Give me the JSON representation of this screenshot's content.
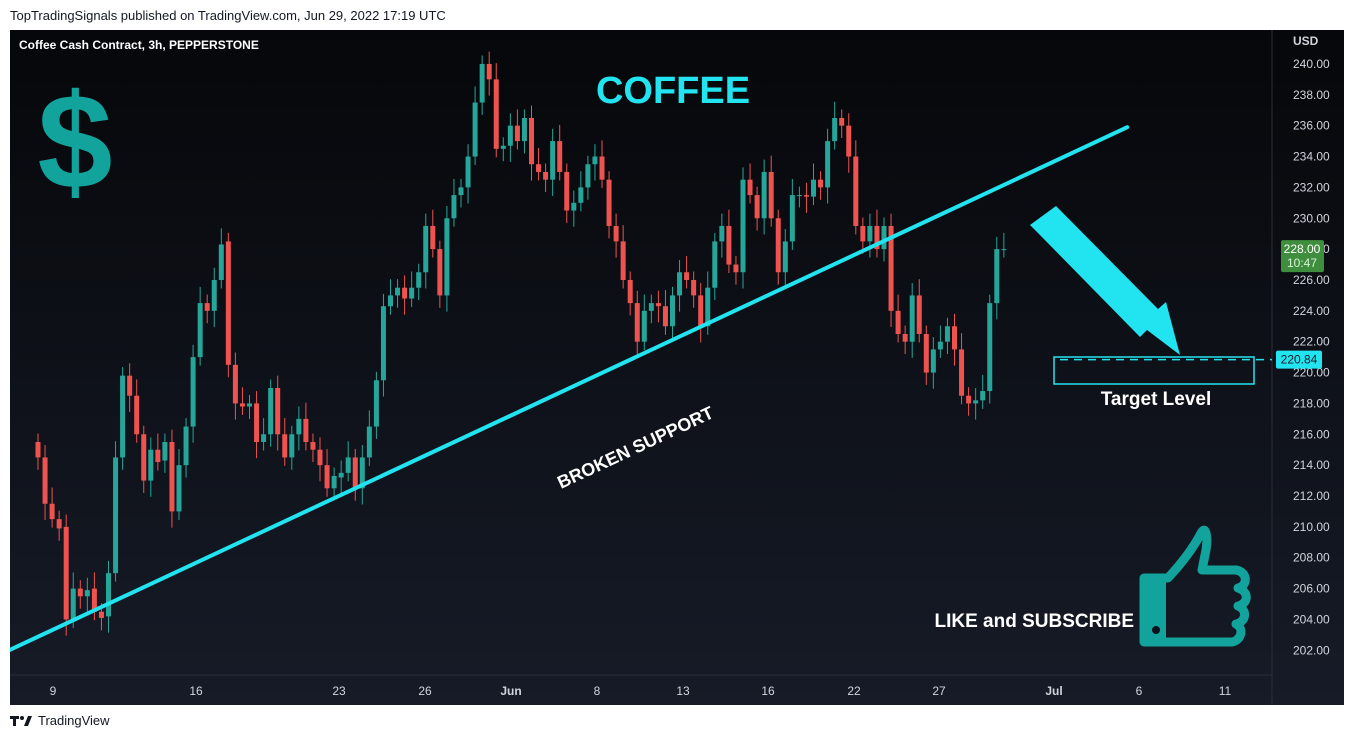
{
  "header": {
    "publish_line": "TopTradingSignals published on TradingView.com, Jun 29, 2022 17:19 UTC"
  },
  "chart": {
    "symbol_line": "Coffee Cash Contract, 3h, PEPPERSTONE",
    "currency": "USD",
    "title": "COFFEE",
    "trendline_label": "BROKEN SUPPORT",
    "target_label": "Target Level",
    "cta_label": "LIKE and SUBSCRIBE",
    "last_price": "228.00",
    "countdown": "10:47",
    "target_price": "220.84",
    "colors": {
      "background": "#131722",
      "up": "#26a69a",
      "down": "#ef5350",
      "accent_cyan": "#22e4f0",
      "dollar_teal": "#12a39c",
      "last_price_bg": "#3f8e3e"
    },
    "icons": [
      "dollar-sign-icon",
      "thumbs-up-icon",
      "arrow-down-right-icon"
    ]
  },
  "chart_data": {
    "type": "candlestick",
    "y_axis_label": "USD",
    "ylim": [
      200.4,
      242.2
    ],
    "y_ticks": [
      "240.00",
      "238.00",
      "236.00",
      "234.00",
      "232.00",
      "230.00",
      "228.00",
      "226.00",
      "224.00",
      "222.00",
      "220.00",
      "218.00",
      "216.00",
      "214.00",
      "212.00",
      "210.00",
      "208.00",
      "206.00",
      "204.00",
      "202.00"
    ],
    "x_ticks": [
      "9",
      "16",
      "23",
      "26",
      "Jun",
      "8",
      "13",
      "16",
      "22",
      "27",
      "Jul",
      "6",
      "11"
    ],
    "candles": [
      [
        215.5,
        214.5
      ],
      [
        214.5,
        211.5
      ],
      [
        211.5,
        210.5
      ],
      [
        210.5,
        209.9
      ],
      [
        210.0,
        204.0
      ],
      [
        204.0,
        206.0
      ],
      [
        206.0,
        205.5
      ],
      [
        205.5,
        205.9
      ],
      [
        206.0,
        204.5
      ],
      [
        204.5,
        204.1
      ],
      [
        204.2,
        207.0
      ],
      [
        207.0,
        214.5
      ],
      [
        214.5,
        219.8
      ],
      [
        219.8,
        218.5
      ],
      [
        218.5,
        216.0
      ],
      [
        216.0,
        213.0
      ],
      [
        213.0,
        215.0
      ],
      [
        215.0,
        214.2
      ],
      [
        214.3,
        215.5
      ],
      [
        215.5,
        211.0
      ],
      [
        211.0,
        214.0
      ],
      [
        214.0,
        216.5
      ],
      [
        216.5,
        221.0
      ],
      [
        221.0,
        224.5
      ],
      [
        224.5,
        224.0
      ],
      [
        224.0,
        226.0
      ],
      [
        226.0,
        228.3
      ],
      [
        228.5,
        220.5
      ],
      [
        220.5,
        218.0
      ],
      [
        218.0,
        217.8
      ],
      [
        217.8,
        218.0
      ],
      [
        218.0,
        215.5
      ],
      [
        215.5,
        216.0
      ],
      [
        216.0,
        219.0
      ],
      [
        219.0,
        216.0
      ],
      [
        216.0,
        214.5
      ],
      [
        214.5,
        216.0
      ],
      [
        216.0,
        217.0
      ],
      [
        217.0,
        215.5
      ],
      [
        215.5,
        215.0
      ],
      [
        215.0,
        214.0
      ],
      [
        214.0,
        212.5
      ],
      [
        212.5,
        213.3
      ],
      [
        213.2,
        213.5
      ],
      [
        213.5,
        214.5
      ],
      [
        214.5,
        212.5
      ],
      [
        212.5,
        214.5
      ],
      [
        214.5,
        216.5
      ],
      [
        216.5,
        219.5
      ],
      [
        219.5,
        224.3
      ],
      [
        224.3,
        225.0
      ],
      [
        225.0,
        225.5
      ],
      [
        225.5,
        224.8
      ],
      [
        224.8,
        225.5
      ],
      [
        225.5,
        226.5
      ],
      [
        226.5,
        229.5
      ],
      [
        229.5,
        228.0
      ],
      [
        228.0,
        225.0
      ],
      [
        225.0,
        230.0
      ],
      [
        230.0,
        231.5
      ],
      [
        231.5,
        232.0
      ],
      [
        232.0,
        234.0
      ],
      [
        234.0,
        237.5
      ],
      [
        237.5,
        240.0
      ],
      [
        240.0,
        239.0
      ],
      [
        239.0,
        234.5
      ],
      [
        234.5,
        234.7
      ],
      [
        234.7,
        236.0
      ],
      [
        236.0,
        235.0
      ],
      [
        235.0,
        236.5
      ],
      [
        236.5,
        233.5
      ],
      [
        233.5,
        233.0
      ],
      [
        233.0,
        232.5
      ],
      [
        232.5,
        235.0
      ],
      [
        235.0,
        233.0
      ],
      [
        233.0,
        230.5
      ],
      [
        230.5,
        231.0
      ],
      [
        231.0,
        232.0
      ],
      [
        232.0,
        233.5
      ],
      [
        233.5,
        234.0
      ],
      [
        234.0,
        232.5
      ],
      [
        232.5,
        229.5
      ],
      [
        229.5,
        228.5
      ],
      [
        228.5,
        226.0
      ],
      [
        226.0,
        224.5
      ],
      [
        224.5,
        222.0
      ],
      [
        222.0,
        224.0
      ],
      [
        224.0,
        224.5
      ],
      [
        224.5,
        224.3
      ],
      [
        224.3,
        223.0
      ],
      [
        223.0,
        225.0
      ],
      [
        225.0,
        226.5
      ],
      [
        226.5,
        226.0
      ],
      [
        226.0,
        225.0
      ],
      [
        225.0,
        223.0
      ],
      [
        223.0,
        225.5
      ],
      [
        225.5,
        228.5
      ],
      [
        228.5,
        229.5
      ],
      [
        229.5,
        227.0
      ],
      [
        227.0,
        226.5
      ],
      [
        226.5,
        232.5
      ],
      [
        232.5,
        231.5
      ],
      [
        231.5,
        230.0
      ],
      [
        230.0,
        233.0
      ],
      [
        233.0,
        230.0
      ],
      [
        230.0,
        226.5
      ],
      [
        226.5,
        228.5
      ],
      [
        228.5,
        231.5
      ],
      [
        231.5,
        231.5
      ],
      [
        231.5,
        231.4
      ],
      [
        231.4,
        232.5
      ],
      [
        232.5,
        232.0
      ],
      [
        232.0,
        235.0
      ],
      [
        235.0,
        236.5
      ],
      [
        236.5,
        236.0
      ],
      [
        236.0,
        234.0
      ],
      [
        234.0,
        229.5
      ],
      [
        229.5,
        228.5
      ],
      [
        228.5,
        229.5
      ],
      [
        229.5,
        228.0
      ],
      [
        228.0,
        229.5
      ],
      [
        229.5,
        224.0
      ],
      [
        224.0,
        222.5
      ],
      [
        222.5,
        222.0
      ],
      [
        222.0,
        225.0
      ],
      [
        225.0,
        222.5
      ],
      [
        222.5,
        220.0
      ],
      [
        220.0,
        221.5
      ],
      [
        221.5,
        222.0
      ],
      [
        222.0,
        223.0
      ],
      [
        223.0,
        221.5
      ],
      [
        221.5,
        218.5
      ],
      [
        218.5,
        218.0
      ],
      [
        218.0,
        218.2
      ],
      [
        218.2,
        218.8
      ],
      [
        218.8,
        224.5
      ],
      [
        224.5,
        228.0
      ],
      [
        228.0,
        228.0
      ]
    ],
    "annotations": {
      "trendline": {
        "from": {
          "bar": -6,
          "price": 201.6
        },
        "to": {
          "bar": 154.5,
          "price": 235.9
        },
        "label": "BROKEN SUPPORT"
      },
      "target_level": 220.84
    }
  }
}
